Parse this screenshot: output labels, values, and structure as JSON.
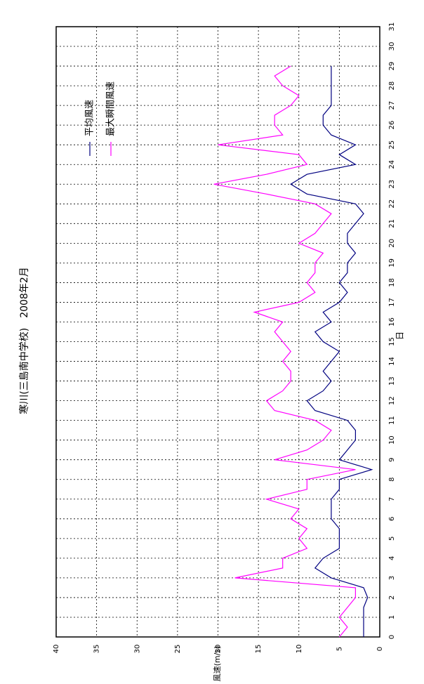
{
  "chart_data": {
    "type": "line",
    "title": "寒川(三島南中学校)　2008年2月",
    "x_label": "日",
    "y_label": "風速(m/s)",
    "x": [
      0,
      0.5,
      1,
      1.5,
      2,
      2.5,
      3,
      3.5,
      4,
      4.5,
      5,
      5.5,
      6,
      6.5,
      7,
      7.5,
      8,
      8.5,
      9,
      9.5,
      10,
      10.5,
      11,
      11.5,
      12,
      12.5,
      13,
      13.5,
      14,
      14.5,
      15,
      15.5,
      16,
      16.5,
      17,
      17.5,
      18,
      18.5,
      19,
      19.5,
      20,
      20.5,
      21,
      21.5,
      22,
      22.5,
      23,
      23.5,
      24,
      24.5,
      25,
      25.5,
      26,
      26.5,
      27,
      27.5,
      28,
      28.5,
      29
    ],
    "series": [
      {
        "name": "平均風速",
        "color": "#000080",
        "values": [
          2,
          2,
          2,
          2,
          1.5,
          2,
          6,
          8,
          7,
          5,
          5,
          5,
          6,
          6,
          6,
          5,
          5,
          1,
          5,
          4,
          3,
          3,
          4,
          8,
          9,
          7,
          6,
          7,
          6,
          5,
          7,
          8,
          6,
          7,
          5,
          4,
          5,
          4,
          4,
          3,
          4,
          4,
          3,
          2,
          3,
          9,
          11,
          9,
          3,
          5,
          3,
          6,
          7,
          7,
          6,
          6,
          6,
          6,
          6
        ]
      },
      {
        "name": "最大瞬間風速",
        "color": "#ff00ff",
        "values": [
          5,
          4,
          5,
          4,
          3,
          3,
          17.9,
          12,
          12,
          9,
          10,
          9,
          11,
          10,
          14,
          9,
          9,
          3,
          13,
          9,
          7,
          6,
          8,
          13,
          14,
          12,
          11,
          11,
          12,
          11,
          12,
          13,
          12,
          15.5,
          10,
          8,
          9,
          8,
          8,
          7,
          10,
          8,
          7,
          6,
          8,
          14,
          20.5,
          14,
          9,
          10,
          20,
          12,
          13,
          13,
          11,
          10,
          12,
          13,
          11
        ]
      }
    ],
    "xlim": [
      0,
      31
    ],
    "xticks": [
      0,
      1,
      2,
      3,
      4,
      5,
      6,
      7,
      8,
      9,
      10,
      11,
      12,
      13,
      14,
      15,
      16,
      17,
      18,
      19,
      20,
      21,
      22,
      23,
      24,
      25,
      26,
      27,
      28,
      29,
      30,
      31
    ],
    "ylim": [
      0,
      40
    ],
    "yticks": [
      0,
      5,
      10,
      15,
      20,
      25,
      30,
      35,
      40
    ],
    "grid": true,
    "legend": "upper-right"
  }
}
